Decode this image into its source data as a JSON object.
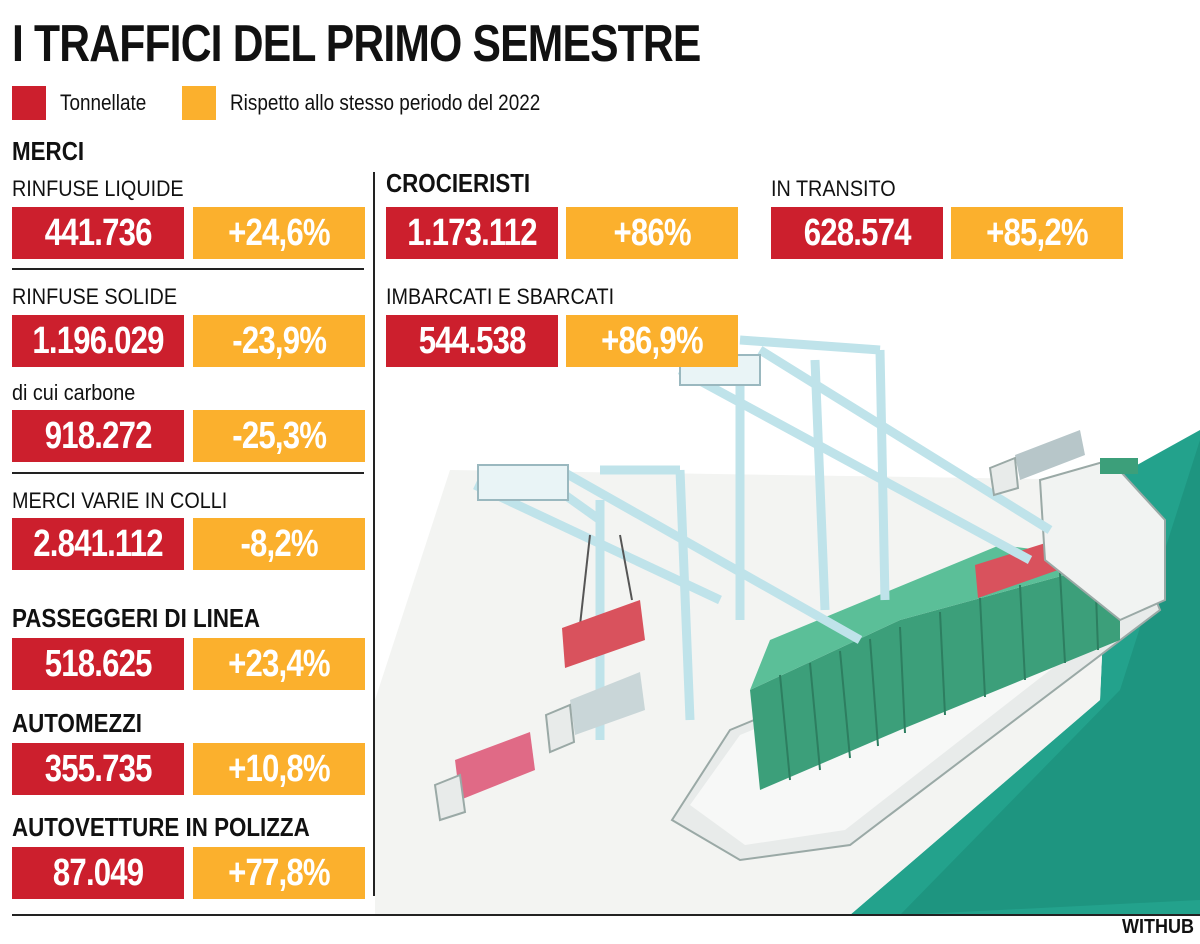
{
  "title": "I TRAFFICI DEL PRIMO SEMESTRE",
  "colors": {
    "value": "#cc1f2d",
    "change": "#fbb02d",
    "sea": "#23a28c"
  },
  "legend": [
    {
      "label": "Tonnellate",
      "color": "#cc1f2d"
    },
    {
      "label": "Rispetto allo stesso periodo del 2022",
      "color": "#fbb02d"
    }
  ],
  "merci": {
    "heading": "MERCI",
    "rinfuse_liquide": {
      "label": "RINFUSE LIQUIDE",
      "value": "441.736",
      "change": "+24,6%"
    },
    "rinfuse_solide": {
      "label": "RINFUSE SOLIDE",
      "value": "1.196.029",
      "change": "-23,9%"
    },
    "carbone": {
      "label": "di cui carbone",
      "value": "918.272",
      "change": "-25,3%"
    },
    "colli": {
      "label": "MERCI VARIE IN COLLI",
      "value": "2.841.112",
      "change": "-8,2%"
    }
  },
  "passeggeri": {
    "heading": "PASSEGGERI DI LINEA",
    "value": "518.625",
    "change": "+23,4%"
  },
  "automezzi": {
    "heading": "AUTOMEZZI",
    "value": "355.735",
    "change": "+10,8%"
  },
  "autovetture": {
    "heading": "AUTOVETTURE IN POLIZZA",
    "value": "87.049",
    "change": "+77,8%"
  },
  "crocieristi": {
    "heading": "CROCIERISTI",
    "total": {
      "value": "1.173.112",
      "change": "+86%"
    },
    "imbarcati": {
      "label": "IMBARCATI E SBARCATI",
      "value": "544.538",
      "change": "+86,9%"
    },
    "transito": {
      "label": "IN TRANSITO",
      "value": "628.574",
      "change": "+85,2%"
    }
  },
  "credit": "WITHUB"
}
